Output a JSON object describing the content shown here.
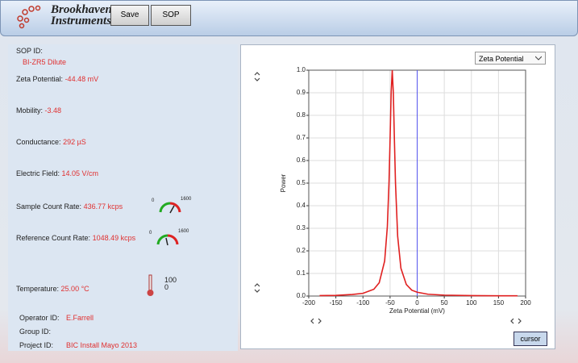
{
  "header": {
    "logo_line1": "Brookhaven",
    "logo_line2": "Instruments",
    "buttons": [
      "Save",
      "SOP"
    ]
  },
  "fields": [
    {
      "label": "SOP ID:",
      "value": "BI-ZR5 Dilute"
    },
    {
      "label": "Zeta Potential:",
      "value": "-44.48 mV"
    },
    {
      "label": "Mobility:",
      "value": "-3.48"
    },
    {
      "label": "Conductance:",
      "value": "292 µS"
    },
    {
      "label": "Electric Field:",
      "value": "14.05 V/cm"
    },
    {
      "label": "Sample Count Rate:",
      "value": "436.77 kcps"
    },
    {
      "label": "Reference Count Rate:",
      "value": "1048.49 kcps"
    },
    {
      "label": "Temperature:",
      "value": "25.00 °C"
    },
    {
      "label": "Operator ID:",
      "value": "E.Farrell"
    },
    {
      "label": "Group ID:",
      "value": ""
    },
    {
      "label": "Project ID:",
      "value": "BIC Install Mayo 2013"
    }
  ],
  "gauges": [
    {
      "min_label": "0",
      "max_label": "1600"
    },
    {
      "min_label": "0",
      "max_label": "1600"
    }
  ],
  "thermometer": {
    "max_label": "100",
    "min_label": "0"
  },
  "panel": {
    "dropdown": "Zeta Potential",
    "cursor_button": "cursor"
  },
  "chart_data": {
    "type": "line",
    "xlabel": "Zeta Potential (mV)",
    "ylabel": "Power",
    "x": [
      -180,
      -150,
      -120,
      -100,
      -80,
      -70,
      -60,
      -55,
      -52,
      -50,
      -48,
      -46,
      -44,
      -42,
      -40,
      -36,
      -30,
      -20,
      -10,
      0,
      20,
      50,
      100,
      150,
      185
    ],
    "values": [
      0.002,
      0.003,
      0.007,
      0.012,
      0.03,
      0.059,
      0.155,
      0.308,
      0.5,
      0.692,
      0.9,
      1.0,
      0.9,
      0.692,
      0.5,
      0.265,
      0.123,
      0.051,
      0.026,
      0.017,
      0.008,
      0.004,
      0.002,
      0.001,
      0.001
    ],
    "color": "#e02020",
    "cursor_x": 0,
    "cursor_color": "#5555ee",
    "xlim": [
      -200,
      200
    ],
    "ylim": [
      0,
      1
    ],
    "xticks": [
      -200,
      -150,
      -100,
      -50,
      0,
      50,
      100,
      150,
      200
    ],
    "yticks": [
      {
        "value": 0,
        "label": "0.0"
      },
      0.1,
      0.2,
      0.3,
      0.4,
      0.5,
      0.6,
      0.7,
      0.8,
      0.9,
      {
        "value": 1,
        "label": "1.0"
      }
    ],
    "grid": true
  }
}
